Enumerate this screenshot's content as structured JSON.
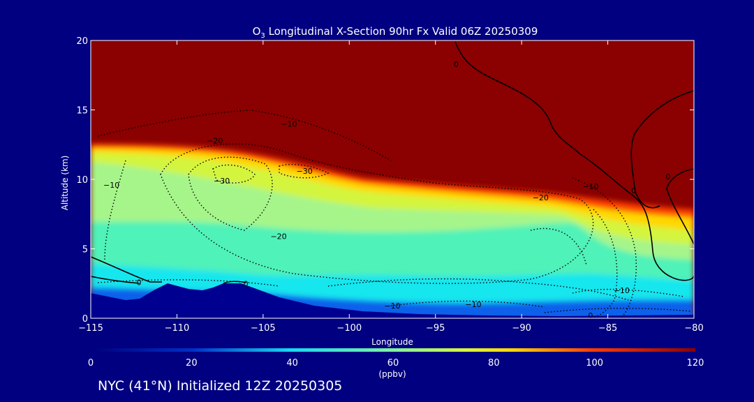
{
  "chart_data": {
    "type": "heatmap",
    "title": "O3 Longitudinal X-Section 90hr  Fx Valid 06Z 20250309",
    "title_parts": {
      "prefix": "O",
      "subscript": "3",
      "suffix": " Longitudinal X-Section 90hr  Fx Valid 06Z 20250309"
    },
    "xlabel": "Longitude",
    "ylabel": "Altitude (km)",
    "xlim": [
      -115,
      -80
    ],
    "ylim": [
      0,
      20
    ],
    "x_ticks": [
      -115,
      -110,
      -105,
      -100,
      -95,
      -90,
      -85,
      -80
    ],
    "x_tick_labels": [
      "−115",
      "−110",
      "−105",
      "−100",
      "−95",
      "−90",
      "−85",
      "−80"
    ],
    "y_ticks": [
      0,
      5,
      10,
      15,
      20
    ],
    "y_tick_labels": [
      "0",
      "5",
      "10",
      "15",
      "20"
    ],
    "colorbar": {
      "min": 0,
      "max": 120,
      "ticks": [
        0,
        20,
        40,
        60,
        80,
        100,
        120
      ],
      "tick_labels": [
        "0",
        "20",
        "40",
        "60",
        "80",
        "100",
        "120"
      ],
      "unit": "(ppbv)"
    },
    "contour_labels": [
      {
        "text": "0",
        "lon": -112.2,
        "alt": 2.6
      },
      {
        "text": "0",
        "lon": -106.0,
        "alt": 2.5
      },
      {
        "text": "0",
        "lon": -93.8,
        "alt": 18.3
      },
      {
        "text": "0",
        "lon": -86.0,
        "alt": 0.2
      },
      {
        "text": "−10",
        "lon": -103.5,
        "alt": 14.0
      },
      {
        "text": "−10",
        "lon": -113.8,
        "alt": 9.6
      },
      {
        "text": "−10",
        "lon": -86.0,
        "alt": 9.5
      },
      {
        "text": "−10",
        "lon": -84.2,
        "alt": 2.0
      },
      {
        "text": "−10",
        "lon": -97.5,
        "alt": 0.9
      },
      {
        "text": "−10",
        "lon": -92.8,
        "alt": 1.0
      },
      {
        "text": "0",
        "lon": -83.5,
        "alt": 9.2
      },
      {
        "text": "0",
        "lon": -81.5,
        "alt": 10.2
      },
      {
        "text": "−20",
        "lon": -107.8,
        "alt": 12.8
      },
      {
        "text": "−20",
        "lon": -104.1,
        "alt": 5.9
      },
      {
        "text": "−20",
        "lon": -88.9,
        "alt": 8.7
      },
      {
        "text": "−30",
        "lon": -107.4,
        "alt": 9.9
      },
      {
        "text": "−30",
        "lon": -102.6,
        "alt": 10.6
      }
    ]
  },
  "footer": "NYC (41°N) Initialized 12Z 20250305",
  "colors": {
    "background": "#000080",
    "ozone_120": "#8b0000",
    "ozone_100": "#ff4500",
    "ozone_80": "#ffd700",
    "ozone_70": "#d4f53c",
    "ozone_60": "#a6f58a",
    "ozone_50": "#50f2b8",
    "ozone_40": "#17e6ee",
    "ozone_25": "#1060ea",
    "ozone_low": "#000090"
  }
}
